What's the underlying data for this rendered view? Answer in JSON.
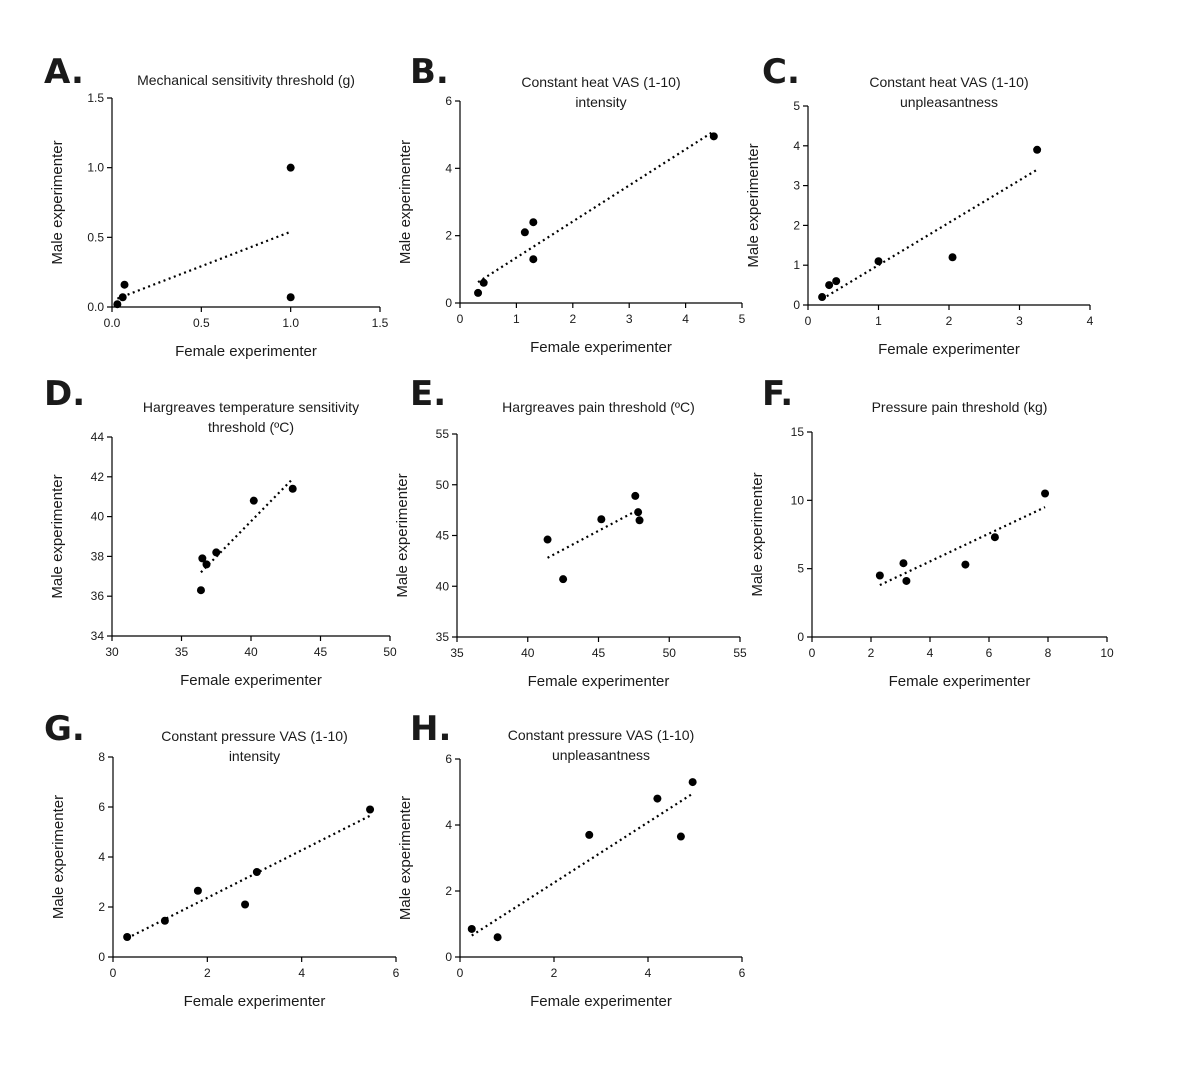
{
  "figure": {
    "type": "scatter_grid"
  },
  "chart_data": [
    {
      "id": "A",
      "letter": "A.",
      "type": "scatter",
      "title": [
        "Mechanical sensitivity threshold (g)"
      ],
      "xlabel": "Female experimenter",
      "ylabel": "Male experimenter",
      "xlim": [
        0,
        1.5
      ],
      "ylim": [
        0,
        1.5
      ],
      "xticks": [
        0,
        0.5,
        1.0,
        1.5
      ],
      "xtick_labels": [
        "0.0",
        "0.5",
        "1.0",
        "1.5"
      ],
      "yticks": [
        0,
        0.5,
        1.0,
        1.5
      ],
      "ytick_labels": [
        "0.0",
        "0.5",
        "1.0",
        "1.5"
      ],
      "points": [
        [
          0.03,
          0.02
        ],
        [
          0.06,
          0.07
        ],
        [
          0.07,
          0.16
        ],
        [
          1.0,
          1.0
        ],
        [
          1.0,
          0.07
        ]
      ],
      "trend": [
        [
          0.03,
          0.06
        ],
        [
          1.0,
          0.54
        ]
      ]
    },
    {
      "id": "B",
      "letter": "B.",
      "type": "scatter",
      "title": [
        "Constant heat VAS (1-10)",
        "intensity"
      ],
      "xlabel": "Female experimenter",
      "ylabel": "Male experimenter",
      "xlim": [
        0,
        5
      ],
      "ylim": [
        0,
        6
      ],
      "xticks": [
        0,
        1,
        2,
        3,
        4,
        5
      ],
      "xtick_labels": [
        "0",
        "1",
        "2",
        "3",
        "4",
        "5"
      ],
      "yticks": [
        0,
        2,
        4,
        6
      ],
      "ytick_labels": [
        "0",
        "2",
        "4",
        "6"
      ],
      "points": [
        [
          0.32,
          0.3
        ],
        [
          0.42,
          0.6
        ],
        [
          1.15,
          2.1
        ],
        [
          1.3,
          2.4
        ],
        [
          1.3,
          1.3
        ],
        [
          4.5,
          4.95
        ]
      ],
      "trend": [
        [
          0.32,
          0.62
        ],
        [
          4.5,
          5.1
        ]
      ]
    },
    {
      "id": "C",
      "letter": "C.",
      "type": "scatter",
      "title": [
        "Constant heat VAS (1-10)",
        "unpleasantness"
      ],
      "xlabel": "Female experimenter",
      "ylabel": "Male experimenter",
      "xlim": [
        0,
        4
      ],
      "ylim": [
        0,
        5
      ],
      "xticks": [
        0,
        1,
        2,
        3,
        4
      ],
      "xtick_labels": [
        "0",
        "1",
        "2",
        "3",
        "4"
      ],
      "yticks": [
        0,
        1,
        2,
        3,
        4,
        5
      ],
      "ytick_labels": [
        "0",
        "1",
        "2",
        "3",
        "4",
        "5"
      ],
      "points": [
        [
          0.2,
          0.2
        ],
        [
          0.3,
          0.5
        ],
        [
          0.4,
          0.6
        ],
        [
          1.0,
          1.1
        ],
        [
          2.05,
          1.2
        ],
        [
          3.25,
          3.9
        ]
      ],
      "trend": [
        [
          0.2,
          0.15
        ],
        [
          3.25,
          3.4
        ]
      ]
    },
    {
      "id": "D",
      "letter": "D.",
      "type": "scatter",
      "title": [
        "Hargreaves temperature sensitivity",
        "threshold (ºC)"
      ],
      "xlabel": "Female experimenter",
      "ylabel": "Male experimenter",
      "xlim": [
        30,
        50
      ],
      "ylim": [
        34,
        44
      ],
      "xticks": [
        30,
        35,
        40,
        45,
        50
      ],
      "xtick_labels": [
        "30",
        "35",
        "40",
        "45",
        "50"
      ],
      "yticks": [
        34,
        36,
        38,
        40,
        42,
        44
      ],
      "ytick_labels": [
        "34",
        "36",
        "38",
        "40",
        "42",
        "44"
      ],
      "points": [
        [
          36.4,
          36.3
        ],
        [
          36.5,
          37.9
        ],
        [
          36.8,
          37.6
        ],
        [
          37.5,
          38.2
        ],
        [
          40.2,
          40.8
        ],
        [
          43.0,
          41.4
        ]
      ],
      "trend": [
        [
          36.4,
          37.2
        ],
        [
          43.0,
          41.9
        ]
      ]
    },
    {
      "id": "E",
      "letter": "E.",
      "type": "scatter",
      "title": [
        "Hargreaves pain threshold (ºC)"
      ],
      "xlabel": "Female experimenter",
      "ylabel": "Male experimenter",
      "xlim": [
        35,
        55
      ],
      "ylim": [
        35,
        55
      ],
      "xticks": [
        35,
        40,
        45,
        50,
        55
      ],
      "xtick_labels": [
        "35",
        "40",
        "45",
        "50",
        "55"
      ],
      "yticks": [
        35,
        40,
        45,
        50,
        55
      ],
      "ytick_labels": [
        "35",
        "40",
        "45",
        "50",
        "55"
      ],
      "points": [
        [
          41.4,
          44.6
        ],
        [
          42.5,
          40.7
        ],
        [
          45.2,
          46.6
        ],
        [
          47.6,
          48.9
        ],
        [
          47.8,
          47.3
        ],
        [
          47.9,
          46.5
        ]
      ],
      "trend": [
        [
          41.4,
          42.8
        ],
        [
          47.9,
          47.6
        ]
      ]
    },
    {
      "id": "F",
      "letter": "F.",
      "type": "scatter",
      "title": [
        "Pressure pain threshold (kg)"
      ],
      "xlabel": "Female experimenter",
      "ylabel": "Male experimenter",
      "xlim": [
        0,
        10
      ],
      "ylim": [
        0,
        15
      ],
      "xticks": [
        0,
        2,
        4,
        6,
        8,
        10
      ],
      "xtick_labels": [
        "0",
        "2",
        "4",
        "6",
        "8",
        "10"
      ],
      "yticks": [
        0,
        5,
        10,
        15
      ],
      "ytick_labels": [
        "0",
        "5",
        "10",
        "15"
      ],
      "points": [
        [
          2.3,
          4.5
        ],
        [
          3.1,
          5.4
        ],
        [
          3.2,
          4.1
        ],
        [
          5.2,
          5.3
        ],
        [
          6.2,
          7.3
        ],
        [
          7.9,
          10.5
        ]
      ],
      "trend": [
        [
          2.3,
          3.8
        ],
        [
          7.9,
          9.5
        ]
      ]
    },
    {
      "id": "G",
      "letter": "G.",
      "type": "scatter",
      "title": [
        "Constant pressure VAS (1-10)",
        "intensity"
      ],
      "xlabel": "Female experimenter",
      "ylabel": "Male experimenter",
      "xlim": [
        0,
        6
      ],
      "ylim": [
        0,
        8
      ],
      "xticks": [
        0,
        2,
        4,
        6
      ],
      "xtick_labels": [
        "0",
        "2",
        "4",
        "6"
      ],
      "yticks": [
        0,
        2,
        4,
        6,
        8
      ],
      "ytick_labels": [
        "0",
        "2",
        "4",
        "6",
        "8"
      ],
      "points": [
        [
          0.3,
          0.8
        ],
        [
          1.1,
          1.45
        ],
        [
          1.8,
          2.65
        ],
        [
          2.8,
          2.1
        ],
        [
          3.05,
          3.4
        ],
        [
          5.45,
          5.9
        ]
      ],
      "trend": [
        [
          0.3,
          0.75
        ],
        [
          5.45,
          5.65
        ]
      ]
    },
    {
      "id": "H",
      "letter": "H.",
      "type": "scatter",
      "title": [
        "Constant pressure VAS (1-10)",
        "unpleasantness"
      ],
      "xlabel": "Female experimenter",
      "ylabel": "Male experimenter",
      "xlim": [
        0,
        6
      ],
      "ylim": [
        0,
        6
      ],
      "xticks": [
        0,
        2,
        4,
        6
      ],
      "xtick_labels": [
        "0",
        "2",
        "4",
        "6"
      ],
      "yticks": [
        0,
        2,
        4,
        6
      ],
      "ytick_labels": [
        "0",
        "2",
        "4",
        "6"
      ],
      "points": [
        [
          0.25,
          0.85
        ],
        [
          0.8,
          0.6
        ],
        [
          2.75,
          3.7
        ],
        [
          4.2,
          4.8
        ],
        [
          4.7,
          3.65
        ],
        [
          4.95,
          5.3
        ]
      ],
      "trend": [
        [
          0.25,
          0.65
        ],
        [
          4.95,
          4.95
        ]
      ]
    }
  ]
}
